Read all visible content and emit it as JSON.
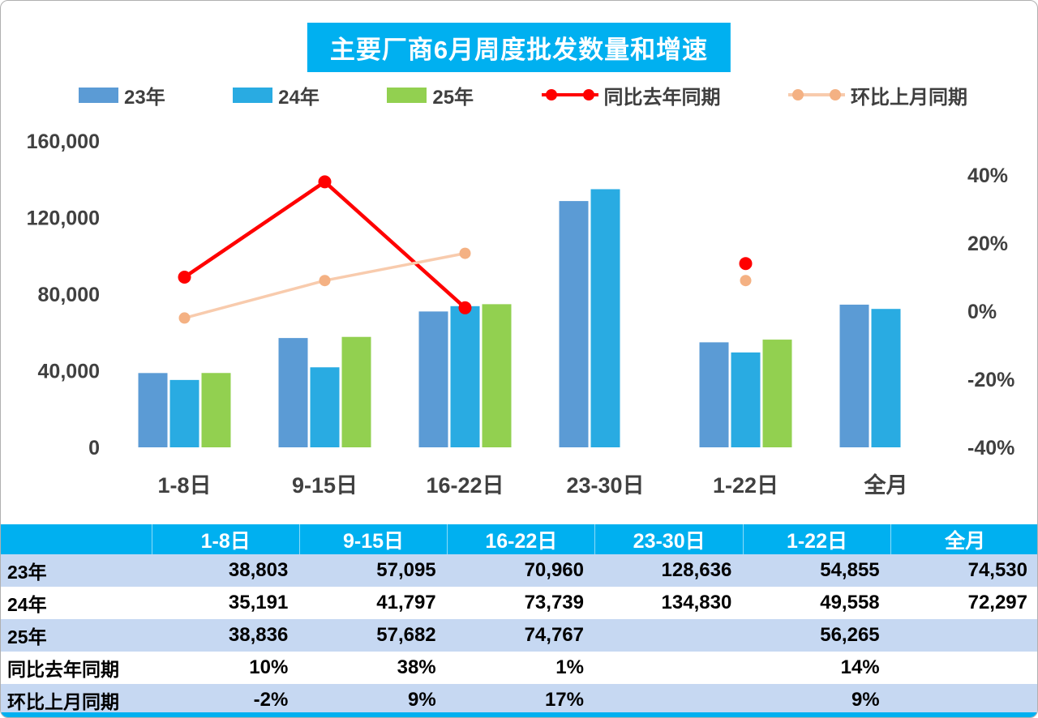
{
  "title": "主要厂商6月周度批发数量和增速",
  "accent_color": "#00B0F0",
  "band_color": "#C6D8F2",
  "legend": [
    {
      "key": "year-23",
      "label": "23年",
      "type": "bar",
      "color": "#5B9BD5"
    },
    {
      "key": "year-24",
      "label": "24年",
      "type": "bar",
      "color": "#29ABE2"
    },
    {
      "key": "year-25",
      "label": "25年",
      "type": "bar",
      "color": "#92D050"
    },
    {
      "key": "yoy",
      "label": "同比去年同期",
      "type": "line",
      "color": "#FF0000",
      "marker_color": "#FF0000"
    },
    {
      "key": "mom",
      "label": "环比上月同期",
      "type": "line",
      "color": "#F8CBAD",
      "marker_color": "#F4B183"
    }
  ],
  "chart_data": {
    "type": "bar+line combo",
    "title": "主要厂商6月周度批发数量和增速",
    "categories": [
      "1-8日",
      "9-15日",
      "16-22日",
      "23-30日",
      "1-22日",
      "全月"
    ],
    "bar_series": [
      {
        "key": "year-23",
        "name": "23年",
        "color": "#5B9BD5",
        "values": [
          38803,
          57095,
          70960,
          128636,
          54855,
          74530
        ]
      },
      {
        "key": "year-24",
        "name": "24年",
        "color": "#29ABE2",
        "values": [
          35191,
          41797,
          73739,
          134830,
          49558,
          72297
        ]
      },
      {
        "key": "year-25",
        "name": "25年",
        "color": "#92D050",
        "values": [
          38836,
          57682,
          74767,
          null,
          56265,
          null
        ]
      }
    ],
    "line_series": [
      {
        "key": "yoy",
        "name": "同比去年同期",
        "color": "#FF0000",
        "marker_color": "#FF0000",
        "stroke_width": 4.5,
        "marker_radius": 8,
        "values_pct": [
          10,
          38,
          1,
          null,
          14,
          null
        ]
      },
      {
        "key": "mom",
        "name": "环比上月同期",
        "color": "#F8CBAD",
        "marker_color": "#F4B183",
        "stroke_width": 3.5,
        "marker_radius": 7,
        "values_pct": [
          -2,
          9,
          17,
          null,
          9,
          null
        ]
      }
    ],
    "left_axis": {
      "min": 0,
      "max": 160000,
      "tick_values": [
        0,
        40000,
        80000,
        120000,
        160000
      ],
      "tick_labels": [
        "0",
        "40,000",
        "80,000",
        "120,000",
        "160,000"
      ]
    },
    "right_axis": {
      "min": -40,
      "max": 50,
      "tick_values": [
        -40,
        -20,
        0,
        20,
        40
      ],
      "tick_labels": [
        "-40%",
        "-20%",
        "0%",
        "20%",
        "40%"
      ]
    },
    "grid": "off",
    "legend_position": "top"
  },
  "table": {
    "header": [
      "",
      "1-8日",
      "9-15日",
      "16-22日",
      "23-30日",
      "1-22日",
      "全月"
    ],
    "rows": [
      {
        "label": "23年",
        "values": [
          "38,803",
          "57,095",
          "70,960",
          "128,636",
          "54,855",
          "74,530"
        ]
      },
      {
        "label": "24年",
        "values": [
          "35,191",
          "41,797",
          "73,739",
          "134,830",
          "49,558",
          "72,297"
        ]
      },
      {
        "label": "25年",
        "values": [
          "38,836",
          "57,682",
          "74,767",
          "",
          "56,265",
          ""
        ]
      },
      {
        "label": "同比去年同期",
        "values": [
          "10%",
          "38%",
          "1%",
          "",
          "14%",
          ""
        ]
      },
      {
        "label": "环比上月同期",
        "values": [
          "-2%",
          "9%",
          "17%",
          "",
          "9%",
          ""
        ]
      }
    ]
  }
}
